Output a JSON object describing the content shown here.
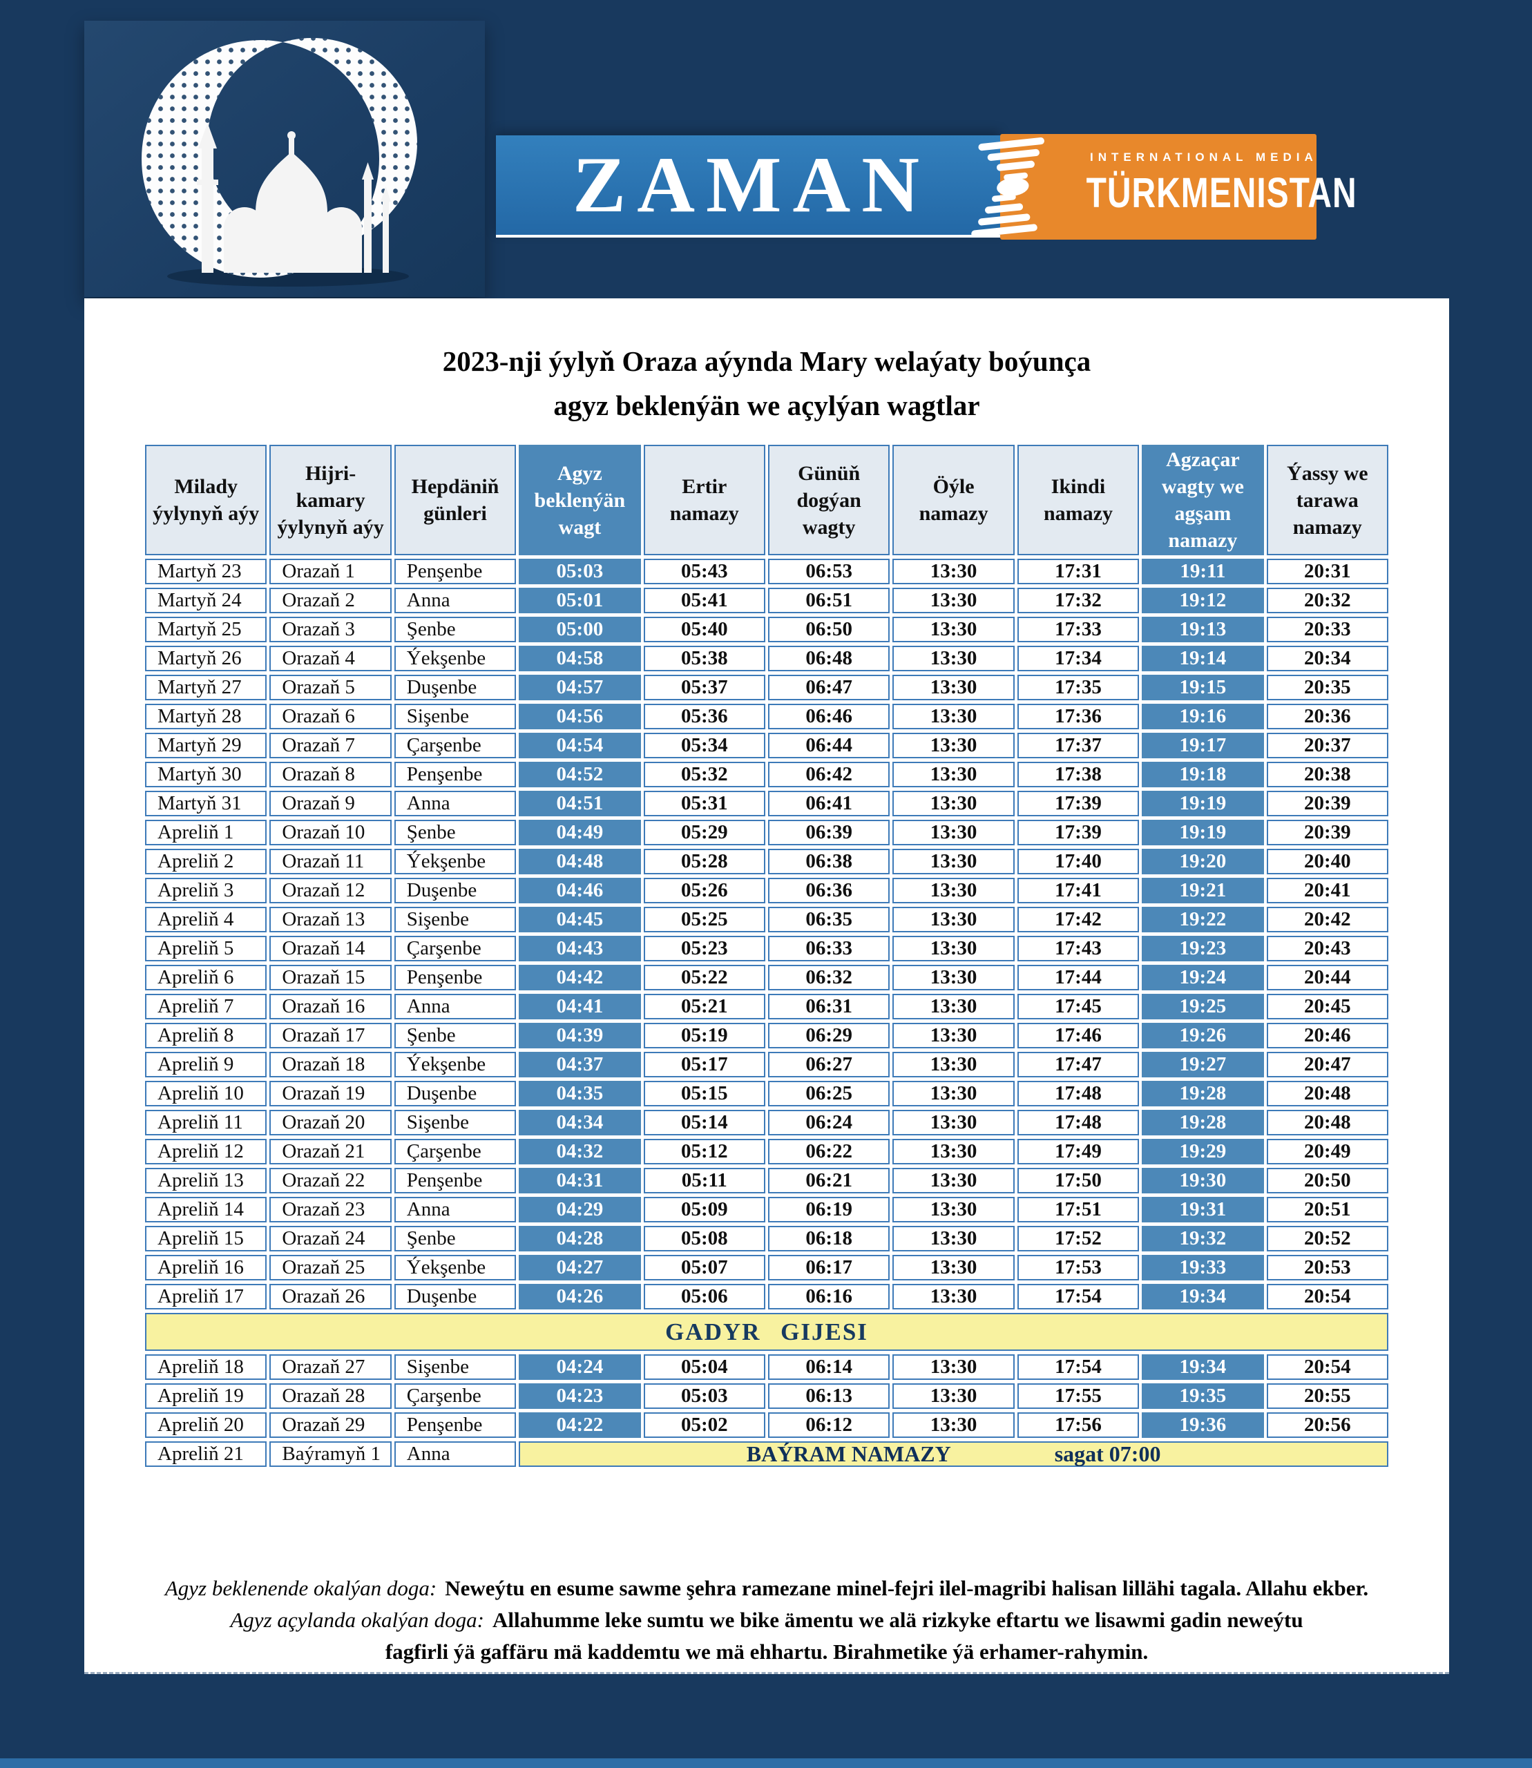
{
  "colors": {
    "background_navy": "#18395E",
    "banner_blue": "#2C74B2",
    "logo_orange": "#E8882B",
    "highlight_steel_blue": "#4C88B8",
    "header_cell": "#E3EAF1",
    "cell_border_blue": "#3D7AB8",
    "special_row_yellow": "#F8F2A0",
    "bottom_strip_blue": "#2D6DA6"
  },
  "header": {
    "zaman_logo": "ZAMAN",
    "intl_media": "INTERNATIONAL MEDIA",
    "turkmenistan": "TÜRKMENISTAN"
  },
  "title": {
    "line1": "2023-nji ýylyň Oraza aýynda Mary welaýaty boýunça",
    "line2": "agyz beklenýän we açylýan wagtlar"
  },
  "table": {
    "columns": [
      "Milady ýylynyň aýy",
      "Hijri-kamary ýylynyň aýy",
      "Hepdäniň günleri",
      "Agyz beklenýän wagt",
      "Ertir namazy",
      "Günüň dogýan wagty",
      "Öýle namazy",
      "Ikindi namazy",
      "Agzaçar wagty we agşam namazy",
      "Ýassy we tarawa namazy"
    ],
    "highlight_cols": [
      3,
      8
    ],
    "rows_before_gadyr": [
      [
        "Martyň 23",
        "Orazaň 1",
        "Penşenbe",
        "05:03",
        "05:43",
        "06:53",
        "13:30",
        "17:31",
        "19:11",
        "20:31"
      ],
      [
        "Martyň 24",
        "Orazaň 2",
        "Anna",
        "05:01",
        "05:41",
        "06:51",
        "13:30",
        "17:32",
        "19:12",
        "20:32"
      ],
      [
        "Martyň 25",
        "Orazaň 3",
        "Şenbe",
        "05:00",
        "05:40",
        "06:50",
        "13:30",
        "17:33",
        "19:13",
        "20:33"
      ],
      [
        "Martyň 26",
        "Orazaň 4",
        "Ýekşenbe",
        "04:58",
        "05:38",
        "06:48",
        "13:30",
        "17:34",
        "19:14",
        "20:34"
      ],
      [
        "Martyň 27",
        "Orazaň 5",
        "Duşenbe",
        "04:57",
        "05:37",
        "06:47",
        "13:30",
        "17:35",
        "19:15",
        "20:35"
      ],
      [
        "Martyň 28",
        "Orazaň 6",
        "Sişenbe",
        "04:56",
        "05:36",
        "06:46",
        "13:30",
        "17:36",
        "19:16",
        "20:36"
      ],
      [
        "Martyň 29",
        "Orazaň 7",
        "Çarşenbe",
        "04:54",
        "05:34",
        "06:44",
        "13:30",
        "17:37",
        "19:17",
        "20:37"
      ],
      [
        "Martyň 30",
        "Orazaň 8",
        "Penşenbe",
        "04:52",
        "05:32",
        "06:42",
        "13:30",
        "17:38",
        "19:18",
        "20:38"
      ],
      [
        "Martyň 31",
        "Orazaň 9",
        "Anna",
        "04:51",
        "05:31",
        "06:41",
        "13:30",
        "17:39",
        "19:19",
        "20:39"
      ],
      [
        "Apreliň 1",
        "Orazaň 10",
        "Şenbe",
        "04:49",
        "05:29",
        "06:39",
        "13:30",
        "17:39",
        "19:19",
        "20:39"
      ],
      [
        "Apreliň 2",
        "Orazaň 11",
        "Ýekşenbe",
        "04:48",
        "05:28",
        "06:38",
        "13:30",
        "17:40",
        "19:20",
        "20:40"
      ],
      [
        "Apreliň 3",
        "Orazaň 12",
        "Duşenbe",
        "04:46",
        "05:26",
        "06:36",
        "13:30",
        "17:41",
        "19:21",
        "20:41"
      ],
      [
        "Apreliň 4",
        "Orazaň 13",
        "Sişenbe",
        "04:45",
        "05:25",
        "06:35",
        "13:30",
        "17:42",
        "19:22",
        "20:42"
      ],
      [
        "Apreliň 5",
        "Orazaň 14",
        "Çarşenbe",
        "04:43",
        "05:23",
        "06:33",
        "13:30",
        "17:43",
        "19:23",
        "20:43"
      ],
      [
        "Apreliň 6",
        "Orazaň 15",
        "Penşenbe",
        "04:42",
        "05:22",
        "06:32",
        "13:30",
        "17:44",
        "19:24",
        "20:44"
      ],
      [
        "Apreliň 7",
        "Orazaň 16",
        "Anna",
        "04:41",
        "05:21",
        "06:31",
        "13:30",
        "17:45",
        "19:25",
        "20:45"
      ],
      [
        "Apreliň 8",
        "Orazaň 17",
        "Şenbe",
        "04:39",
        "05:19",
        "06:29",
        "13:30",
        "17:46",
        "19:26",
        "20:46"
      ],
      [
        "Apreliň 9",
        "Orazaň 18",
        "Ýekşenbe",
        "04:37",
        "05:17",
        "06:27",
        "13:30",
        "17:47",
        "19:27",
        "20:47"
      ],
      [
        "Apreliň 10",
        "Orazaň 19",
        "Duşenbe",
        "04:35",
        "05:15",
        "06:25",
        "13:30",
        "17:48",
        "19:28",
        "20:48"
      ],
      [
        "Apreliň 11",
        "Orazaň 20",
        "Sişenbe",
        "04:34",
        "05:14",
        "06:24",
        "13:30",
        "17:48",
        "19:28",
        "20:48"
      ],
      [
        "Apreliň 12",
        "Orazaň 21",
        "Çarşenbe",
        "04:32",
        "05:12",
        "06:22",
        "13:30",
        "17:49",
        "19:29",
        "20:49"
      ],
      [
        "Apreliň 13",
        "Orazaň 22",
        "Penşenbe",
        "04:31",
        "05:11",
        "06:21",
        "13:30",
        "17:50",
        "19:30",
        "20:50"
      ],
      [
        "Apreliň 14",
        "Orazaň 23",
        "Anna",
        "04:29",
        "05:09",
        "06:19",
        "13:30",
        "17:51",
        "19:31",
        "20:51"
      ],
      [
        "Apreliň 15",
        "Orazaň 24",
        "Şenbe",
        "04:28",
        "05:08",
        "06:18",
        "13:30",
        "17:52",
        "19:32",
        "20:52"
      ],
      [
        "Apreliň 16",
        "Orazaň 25",
        "Ýekşenbe",
        "04:27",
        "05:07",
        "06:17",
        "13:30",
        "17:53",
        "19:33",
        "20:53"
      ],
      [
        "Apreliň 17",
        "Orazaň 26",
        "Duşenbe",
        "04:26",
        "05:06",
        "06:16",
        "13:30",
        "17:54",
        "19:34",
        "20:54"
      ]
    ],
    "gadyr_label": "GADYR GIJESI",
    "rows_after_gadyr": [
      [
        "Apreliň 18",
        "Orazaň 27",
        "Sişenbe",
        "04:24",
        "05:04",
        "06:14",
        "13:30",
        "17:54",
        "19:34",
        "20:54"
      ],
      [
        "Apreliň 19",
        "Orazaň 28",
        "Çarşenbe",
        "04:23",
        "05:03",
        "06:13",
        "13:30",
        "17:55",
        "19:35",
        "20:55"
      ],
      [
        "Apreliň 20",
        "Orazaň 29",
        "Penşenbe",
        "04:22",
        "05:02",
        "06:12",
        "13:30",
        "17:56",
        "19:36",
        "20:56"
      ]
    ],
    "bayram_row": {
      "milady": "Apreliň 21",
      "hijri": "Baýramyň 1",
      "day": "Anna",
      "label": "BAÝRAM NAMAZY",
      "time_label": "sagat 07:00"
    }
  },
  "footer": {
    "doga1_label": "Agyz beklenende okalýan doga:",
    "doga1_text": "Neweýtu en esume sawme şehra ramezane minel-fejri ilel-magribi halisan lillähi tagala. Allahu ekber.",
    "doga2_label": "Agyz açylanda okalýan doga:",
    "doga2_text": "Allahumme leke sumtu we bike ämentu we alä rizkyke eftartu we lisawmi gadin neweýtu",
    "doga2_cont": "fagfirli ýä gaffäru mä kaddemtu we mä ehhartu. Birahmetike ýä erhamer-rahymin."
  }
}
